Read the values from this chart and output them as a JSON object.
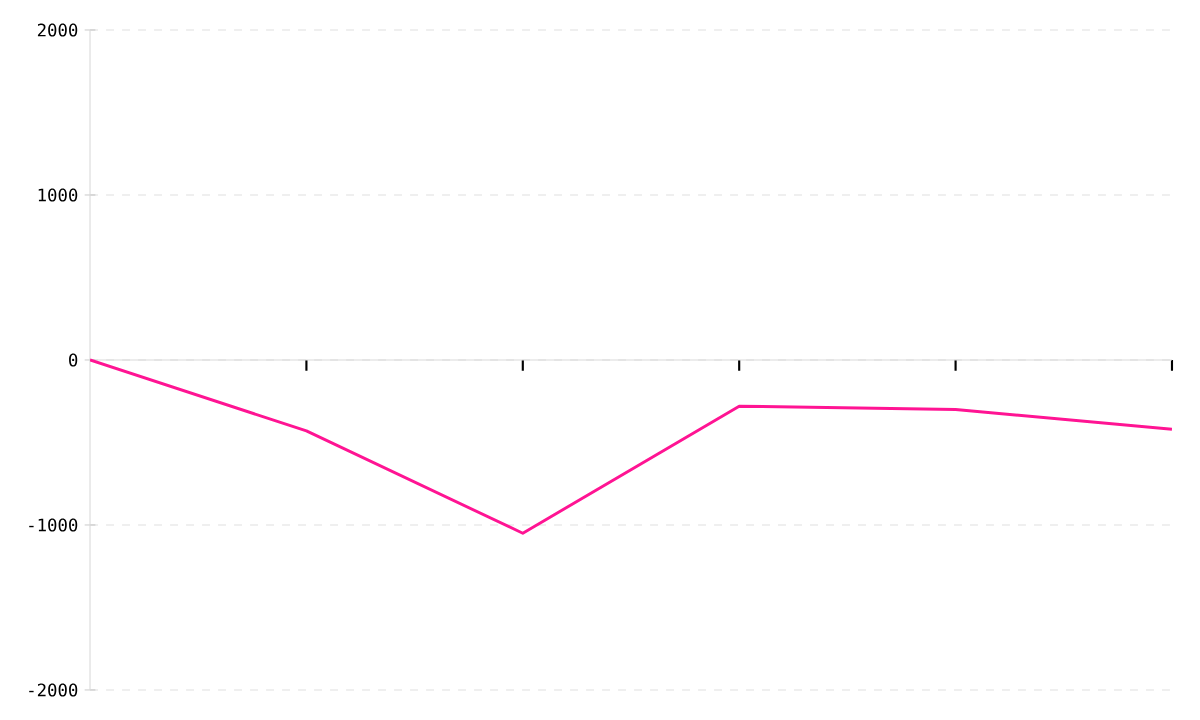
{
  "chart_data": {
    "type": "line",
    "categories": [
      null,
      null,
      null,
      null,
      null,
      null
    ],
    "series": [
      {
        "color": "#ff1493",
        "values": [
          0,
          -430,
          -1050,
          -280,
          -300,
          -420
        ]
      }
    ],
    "ylim": [
      -2000,
      2000
    ],
    "yticks": [
      -2000,
      -1000,
      0,
      1000,
      2000
    ],
    "grid": "y",
    "tick_labels": "y",
    "marker": "none",
    "line_style": "solid"
  }
}
